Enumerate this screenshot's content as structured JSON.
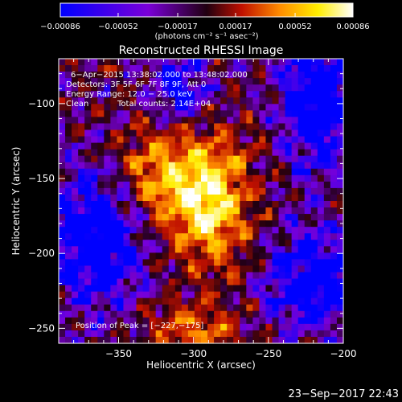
{
  "chart_data": {
    "type": "heatmap",
    "title": "Reconstructed RHESSI Image",
    "xlabel": "Heliocentric X (arcsec)",
    "ylabel": "Heliocentric Y (arcsec)",
    "xlim": [
      -390,
      -200
    ],
    "ylim": [
      -260,
      -70
    ],
    "x_ticks": [
      -350,
      -300,
      -250,
      -200
    ],
    "x_tick_labels": [
      "−350",
      "−300",
      "−250",
      "−200"
    ],
    "y_ticks": [
      -250,
      -200,
      -150,
      -100
    ],
    "y_tick_labels": [
      "−250",
      "−200",
      "−150",
      "−100"
    ],
    "colorbar": {
      "min": -0.00086,
      "max": 0.00086,
      "ticks": [
        -0.00086,
        -0.00052,
        -0.00017,
        0.00017,
        0.00052,
        0.00086
      ],
      "tick_labels": [
        "−0.00086",
        "−0.00052",
        "−0.00017",
        "0.00017",
        "0.00052",
        "0.00086"
      ],
      "unit_label": "(photons cm⁻² s⁻¹ asec⁻²)",
      "colors": [
        "#0000ff",
        "#7a00d8",
        "#200010",
        "#c01000",
        "#ff8c00",
        "#ffee00",
        "#ffffff"
      ]
    },
    "annotations": {
      "time_range": "6−Apr−2015 13:38:02.000 to 13:48:02.000",
      "detectors": "Detectors: 3F 5F 6F 7F 8F 9F, Att 0",
      "energy": "Energy Range: 12.0 − 25.0 keV",
      "method": "Clean",
      "counts": "Total counts: 2.14E+04",
      "peak": "Position of Peak = [−227,−175]"
    },
    "peak_position": [
      -227,
      -175
    ],
    "grid": false
  },
  "footer": {
    "timestamp": "23−Sep−2017 22:43"
  }
}
